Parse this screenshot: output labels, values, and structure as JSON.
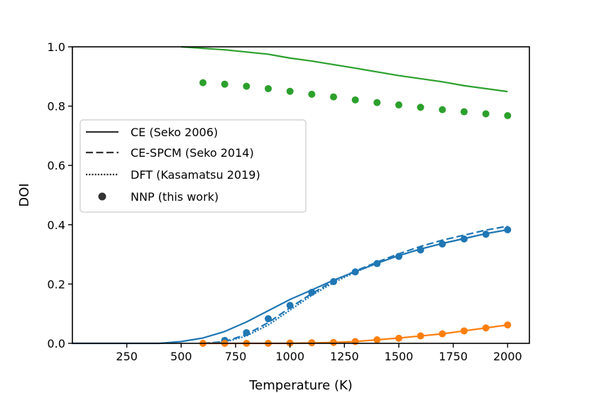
{
  "chart_data": {
    "type": "line",
    "xlabel": "Temperature (K)",
    "ylabel": "DOI",
    "xlim": [
      0,
      2100
    ],
    "ylim": [
      0.0,
      1.0
    ],
    "xticks": [
      250,
      500,
      750,
      1000,
      1250,
      1500,
      1750,
      2000
    ],
    "yticks": [
      0.0,
      0.2,
      0.4,
      0.6,
      0.8,
      1.0
    ],
    "xtick_labels": [
      "250",
      "500",
      "750",
      "1000",
      "1250",
      "1500",
      "1750",
      "2000"
    ],
    "ytick_labels": [
      "0.0",
      "0.2",
      "0.4",
      "0.6",
      "0.8",
      "1.0"
    ],
    "grid": false,
    "legend": {
      "placement": "center-left",
      "entries": [
        {
          "label": "CE (Seko 2006)",
          "style": "solid"
        },
        {
          "label": "CE-SPCM (Seko 2014)",
          "style": "dashed"
        },
        {
          "label": "DFT (Kasamatsu 2019)",
          "style": "dotted"
        },
        {
          "label": "NNP (this work)",
          "style": "marker"
        }
      ]
    },
    "series": [
      {
        "color": "#2ca02c",
        "style": "solid",
        "x": [
          500,
          700,
          900,
          1000,
          1100,
          1300,
          1500,
          1700,
          1800,
          2000
        ],
        "y": [
          1.0,
          0.99,
          0.975,
          0.962,
          0.952,
          0.928,
          0.903,
          0.882,
          0.869,
          0.849
        ]
      },
      {
        "color": "#2ca02c",
        "style": "marker",
        "x": [
          600,
          700,
          800,
          900,
          1000,
          1100,
          1200,
          1300,
          1400,
          1500,
          1600,
          1700,
          1800,
          1900,
          2000
        ],
        "y": [
          0.879,
          0.874,
          0.867,
          0.859,
          0.85,
          0.84,
          0.831,
          0.821,
          0.812,
          0.804,
          0.796,
          0.788,
          0.781,
          0.774,
          0.768
        ]
      },
      {
        "color": "#1f77b4",
        "style": "solid",
        "x": [
          0,
          400,
          500,
          600,
          700,
          800,
          900,
          1000,
          1100,
          1200,
          1300,
          1400,
          1500,
          1600,
          1700,
          1800,
          1900,
          2000
        ],
        "y": [
          0.0,
          0.0,
          0.006,
          0.018,
          0.04,
          0.072,
          0.11,
          0.148,
          0.18,
          0.213,
          0.242,
          0.27,
          0.296,
          0.318,
          0.337,
          0.353,
          0.37,
          0.383
        ]
      },
      {
        "color": "#1f77b4",
        "style": "dashed",
        "x": [
          600,
          700,
          800,
          900,
          1000,
          1100,
          1200,
          1300,
          1400,
          1500,
          1600,
          1700,
          1800,
          1900,
          2000
        ],
        "y": [
          0.0,
          0.006,
          0.03,
          0.07,
          0.12,
          0.168,
          0.21,
          0.244,
          0.274,
          0.302,
          0.327,
          0.348,
          0.365,
          0.382,
          0.395
        ]
      },
      {
        "color": "#1f77b4",
        "style": "dotted",
        "x": [
          600,
          700,
          800,
          900,
          1000,
          1100,
          1200,
          1300,
          1400,
          1500,
          1600,
          1700,
          1800,
          1900,
          2000
        ],
        "y": [
          0.0,
          0.004,
          0.025,
          0.062,
          0.112,
          0.162,
          0.205,
          0.24,
          0.27,
          0.296,
          0.318,
          0.337,
          0.354,
          0.37,
          0.383
        ]
      },
      {
        "color": "#1f77b4",
        "style": "marker",
        "x": [
          700,
          800,
          900,
          1000,
          1100,
          1200,
          1300,
          1400,
          1500,
          1600,
          1700,
          1800,
          1900,
          2000
        ],
        "y": [
          0.01,
          0.036,
          0.083,
          0.128,
          0.172,
          0.208,
          0.241,
          0.269,
          0.293,
          0.315,
          0.335,
          0.352,
          0.368,
          0.383
        ]
      },
      {
        "color": "#ff7f0e",
        "style": "solid",
        "x": [
          600,
          800,
          1000,
          1200,
          1300,
          1400,
          1500,
          1600,
          1700,
          1800,
          1900,
          2000
        ],
        "y": [
          0.0,
          0.0,
          0.0,
          0.003,
          0.006,
          0.012,
          0.018,
          0.025,
          0.032,
          0.042,
          0.052,
          0.062
        ]
      },
      {
        "color": "#ff7f0e",
        "style": "marker",
        "x": [
          600,
          700,
          800,
          900,
          1000,
          1100,
          1200,
          1300,
          1400,
          1500,
          1600,
          1700,
          1800,
          1900,
          2000
        ],
        "y": [
          0.0,
          0.0,
          0.0,
          0.0,
          0.001,
          0.002,
          0.003,
          0.006,
          0.012,
          0.017,
          0.025,
          0.032,
          0.042,
          0.052,
          0.062
        ]
      }
    ]
  }
}
